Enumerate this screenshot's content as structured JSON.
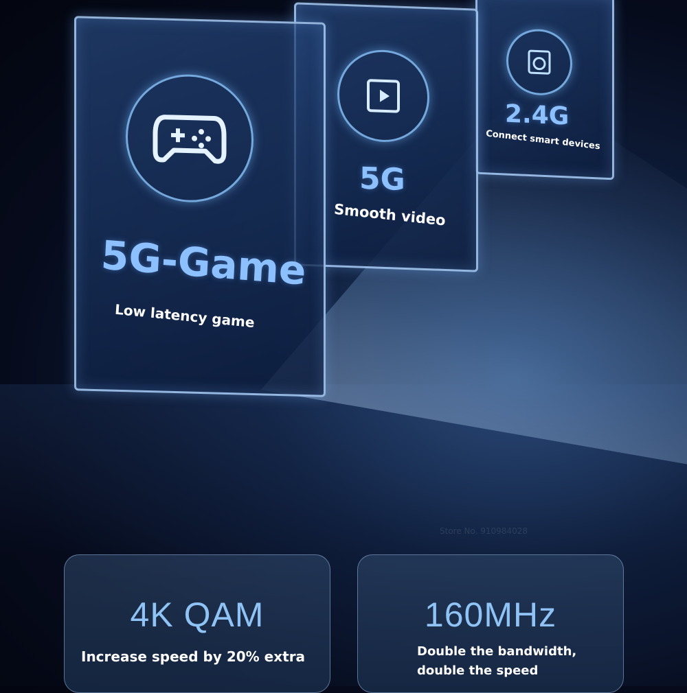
{
  "panels": [
    {
      "title": "5G-Game",
      "subtitle": "Low latency game",
      "icon": "gamepad-icon"
    },
    {
      "title": "5G",
      "subtitle": "Smooth video",
      "icon": "video-play-icon"
    },
    {
      "title": "2.4G",
      "subtitle": "Connect smart devices",
      "icon": "washing-machine-icon"
    }
  ],
  "features": [
    {
      "title": "4K QAM",
      "description": "Increase speed by 20% extra"
    },
    {
      "title": "160MHz",
      "description_line1": "Double the bandwidth,",
      "description_line2": "double the speed"
    }
  ],
  "watermark": "Store No. 910984028",
  "colors": {
    "accent": "#8cc0ff",
    "background": "#0a1430"
  }
}
